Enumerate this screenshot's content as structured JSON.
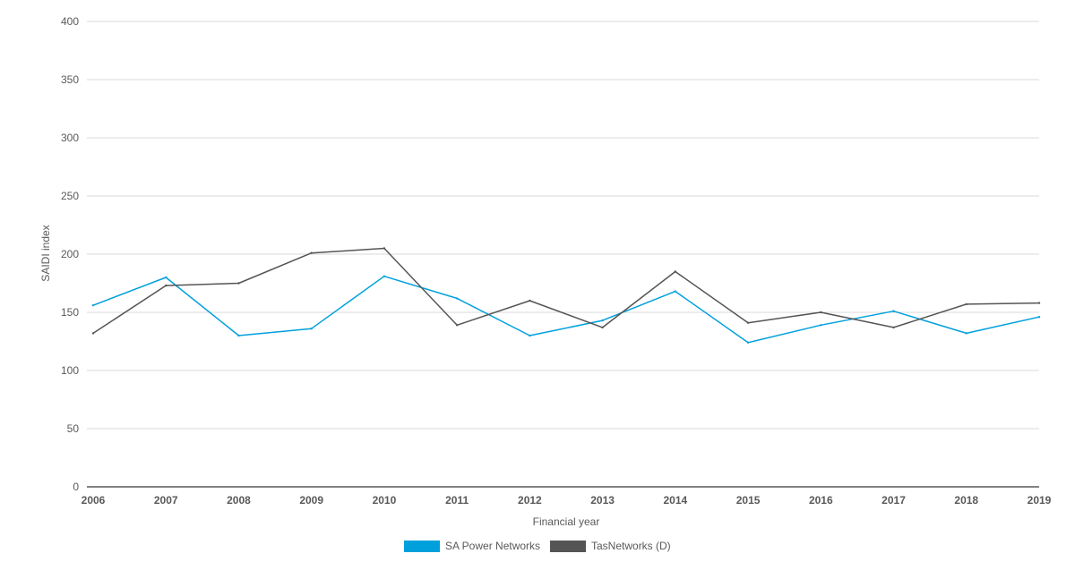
{
  "chart_data": {
    "type": "line",
    "title": "",
    "xlabel": "Financial year",
    "ylabel": "SAIDI index",
    "ylim": [
      0,
      400
    ],
    "yticks": [
      0,
      50,
      100,
      150,
      200,
      250,
      300,
      350,
      400
    ],
    "grid": true,
    "legend_position": "bottom-center",
    "categories": [
      "2006",
      "2007",
      "2008",
      "2009",
      "2010",
      "2011",
      "2012",
      "2013",
      "2014",
      "2015",
      "2016",
      "2017",
      "2018",
      "2019"
    ],
    "series": [
      {
        "name": "SA Power Networks",
        "color": "#00a0dd",
        "values": [
          156,
          180,
          130,
          136,
          181,
          162,
          130,
          143,
          168,
          124,
          139,
          151,
          132,
          146
        ]
      },
      {
        "name": "TasNetworks (D)",
        "color": "#555555",
        "values": [
          132,
          173,
          175,
          201,
          205,
          139,
          160,
          137,
          185,
          141,
          150,
          137,
          157,
          158
        ]
      }
    ]
  }
}
